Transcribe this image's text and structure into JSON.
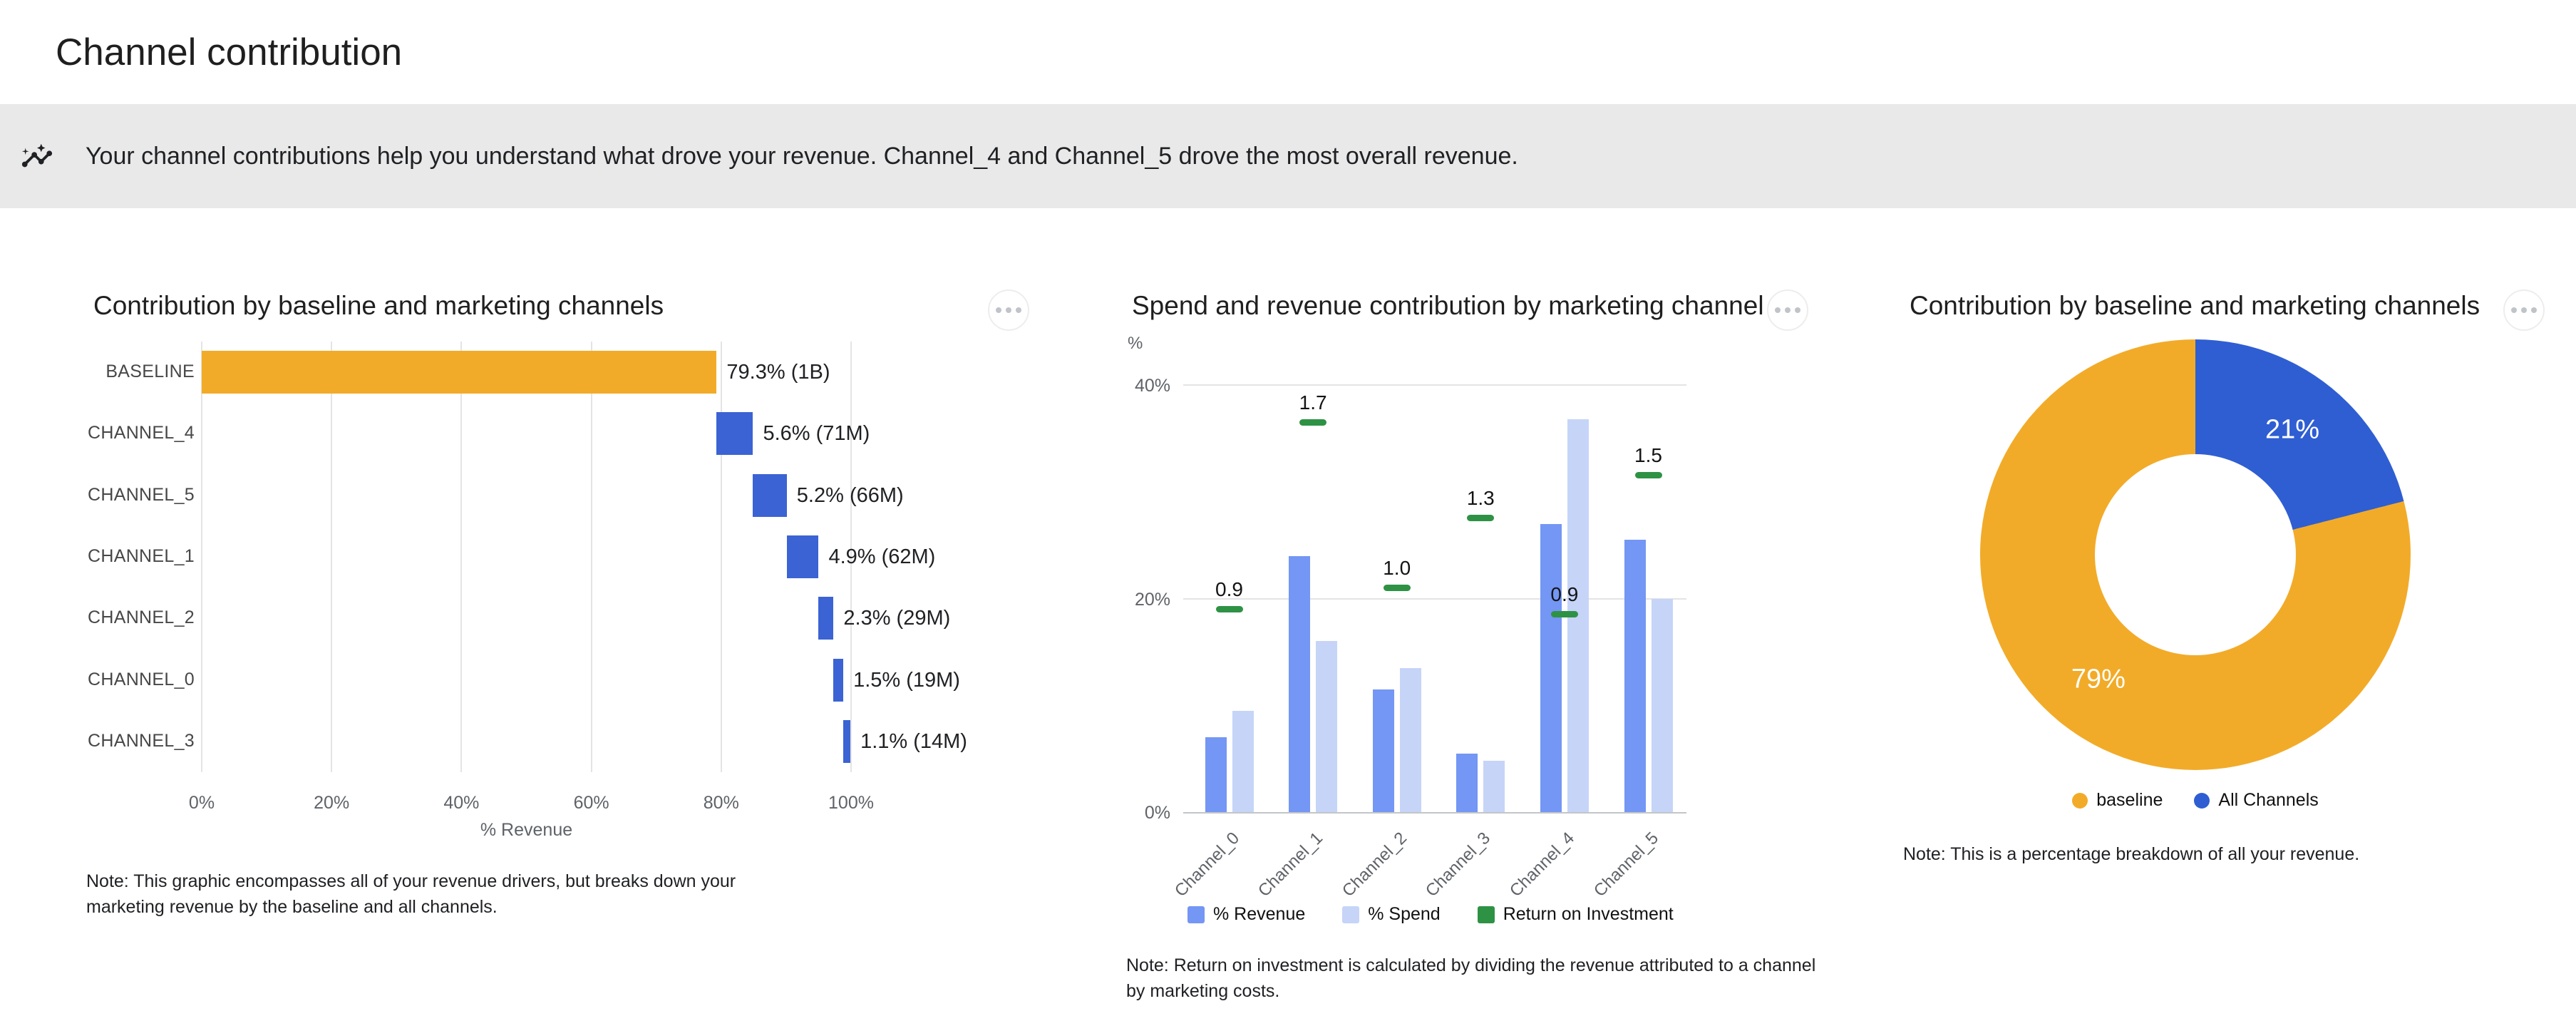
{
  "page": {
    "title": "Channel contribution",
    "banner": {
      "icon": "insights-icon",
      "text": "Your channel contributions help you understand what drove your revenue. Channel_4 and Channel_5 drove the most overall revenue."
    }
  },
  "chart_data": [
    {
      "type": "bar",
      "variant": "horizontal_waterfall",
      "title": "Contribution by baseline and marketing channels",
      "categories": [
        "BASELINE",
        "CHANNEL_4",
        "CHANNEL_5",
        "CHANNEL_1",
        "CHANNEL_2",
        "CHANNEL_0",
        "CHANNEL_3"
      ],
      "starts": [
        0,
        79.3,
        84.9,
        90.1,
        95,
        97.3,
        98.8
      ],
      "values": [
        79.3,
        5.6,
        5.2,
        4.9,
        2.3,
        1.5,
        1.1
      ],
      "labels": [
        "79.3% (1B)",
        "5.6% (71M)",
        "5.2% (66M)",
        "4.9% (62M)",
        "2.3% (29M)",
        "1.5% (19M)",
        "1.1% (14M)"
      ],
      "bar_colors": [
        "#F2AB28",
        "#3B63D3",
        "#3B63D3",
        "#3B63D3",
        "#3B63D3",
        "#3B63D3",
        "#3B63D3"
      ],
      "xlabel": "% Revenue",
      "xlim": [
        0,
        100
      ],
      "x_ticks": [
        "0%",
        "20%",
        "40%",
        "60%",
        "80%",
        "100%"
      ],
      "note": "Note: This graphic encompasses all of your revenue drivers, but breaks down your marketing revenue by the baseline and all channels."
    },
    {
      "type": "bar",
      "variant": "grouped_with_roi_markers",
      "title": "Spend and revenue contribution by marketing channel",
      "y_unit": "%",
      "categories": [
        "Channel_0",
        "Channel_1",
        "Channel_2",
        "Channel_3",
        "Channel_4",
        "Channel_5"
      ],
      "series": [
        {
          "name": "% Revenue",
          "color": "#7496F4",
          "values": [
            7,
            24,
            11.5,
            5.5,
            27,
            25.5
          ]
        },
        {
          "name": "% Spend",
          "color": "#C6D4F8",
          "values": [
            9.5,
            16,
            13.5,
            4.8,
            36.8,
            20
          ]
        }
      ],
      "roi": {
        "name": "Return on Investment",
        "color": "#2E9245",
        "values": [
          0.9,
          1.7,
          1.0,
          1.3,
          0.9,
          1.5
        ],
        "marker_pct": [
          19,
          36.5,
          21,
          27.5,
          18.5,
          31.5
        ]
      },
      "y_ticks": [
        {
          "label": "0%",
          "value": 0
        },
        {
          "label": "20%",
          "value": 20
        },
        {
          "label": "40%",
          "value": 40
        }
      ],
      "ylim": [
        0,
        43
      ],
      "note": "Note: Return on investment is calculated by dividing the revenue attributed to a channel by marketing costs."
    },
    {
      "type": "pie",
      "variant": "donut",
      "title": "Contribution by baseline and marketing channels",
      "slices": [
        {
          "label": "All Channels",
          "pct": 21,
          "color": "#2F5ED3"
        },
        {
          "label": "baseline",
          "pct": 79,
          "color": "#F2AB28"
        }
      ],
      "legend": [
        {
          "label": "baseline",
          "color": "#F2AB28"
        },
        {
          "label": "All Channels",
          "color": "#2F5ED3"
        }
      ],
      "note": "Note: This is a percentage breakdown of all your revenue."
    }
  ]
}
